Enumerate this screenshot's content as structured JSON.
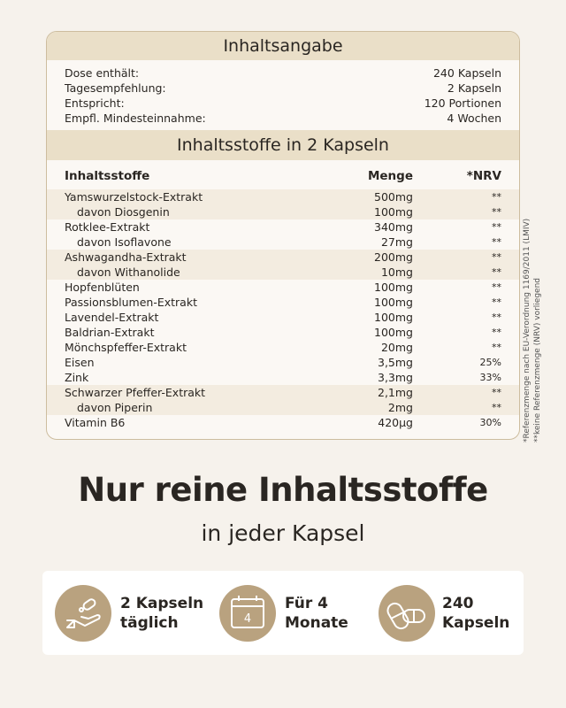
{
  "header": {
    "title": "Inhaltsangabe"
  },
  "summary": [
    [
      "Dose enthält:",
      "240 Kapseln"
    ],
    [
      "Tagesempfehlung:",
      "2 Kapseln"
    ],
    [
      "Entspricht:",
      "120 Portionen"
    ],
    [
      "Empfl. Mindesteinnahme:",
      "4 Wochen"
    ]
  ],
  "ingredients": {
    "title": "Inhaltsstoffe in 2 Kapseln",
    "columns": [
      "Inhaltsstoffe",
      "Menge",
      "*NRV"
    ],
    "rows": [
      {
        "name": "Yamswurzelstock-Extrakt",
        "amount": "500mg",
        "nrv": "**",
        "sub": [
          {
            "name": "davon Diosgenin",
            "amount": "100mg",
            "nrv": "**"
          }
        ]
      },
      {
        "name": "Rotklee-Extrakt",
        "amount": "340mg",
        "nrv": "**",
        "sub": [
          {
            "name": "davon Isoflavone",
            "amount": "27mg",
            "nrv": "**"
          }
        ]
      },
      {
        "name": "Ashwagandha-Extrakt",
        "amount": "200mg",
        "nrv": "**",
        "sub": [
          {
            "name": "davon Withanolide",
            "amount": "10mg",
            "nrv": "**"
          }
        ]
      },
      {
        "name": "Hopfenblüten",
        "amount": "100mg",
        "nrv": "**"
      },
      {
        "name": "Passionsblumen-Extrakt",
        "amount": "100mg",
        "nrv": "**"
      },
      {
        "name": "Lavendel-Extrakt",
        "amount": "100mg",
        "nrv": "**"
      },
      {
        "name": "Baldrian-Extrakt",
        "amount": "100mg",
        "nrv": "**"
      },
      {
        "name": "Mönchspfeffer-Extrakt",
        "amount": "20mg",
        "nrv": "**"
      },
      {
        "name": "Eisen",
        "amount": "3,5mg",
        "nrv": "25%"
      },
      {
        "name": "Zink",
        "amount": "3,3mg",
        "nrv": "33%"
      },
      {
        "name": "Schwarzer Pfeffer-Extrakt",
        "amount": "2,1mg",
        "nrv": "**",
        "sub": [
          {
            "name": "davon Piperin",
            "amount": "2mg",
            "nrv": "**"
          }
        ]
      },
      {
        "name": "Vitamin B6",
        "amount": "420µg",
        "nrv": "30%"
      }
    ]
  },
  "footnotes": [
    "*Referenzmenge nach EU-Verordnung 1169/2011 (LMIV)",
    "**keine Referenzmenge (NRV) vorliegend"
  ],
  "heading": "Nur reine Inhaltsstoffe",
  "subheading": "in jeder Kapsel",
  "features": [
    {
      "lines": [
        "2 Kapseln",
        "täglich"
      ]
    },
    {
      "icon_label": "4",
      "lines": [
        "Für 4",
        "Monate"
      ]
    },
    {
      "lines": [
        "240",
        "Kapseln"
      ]
    }
  ]
}
